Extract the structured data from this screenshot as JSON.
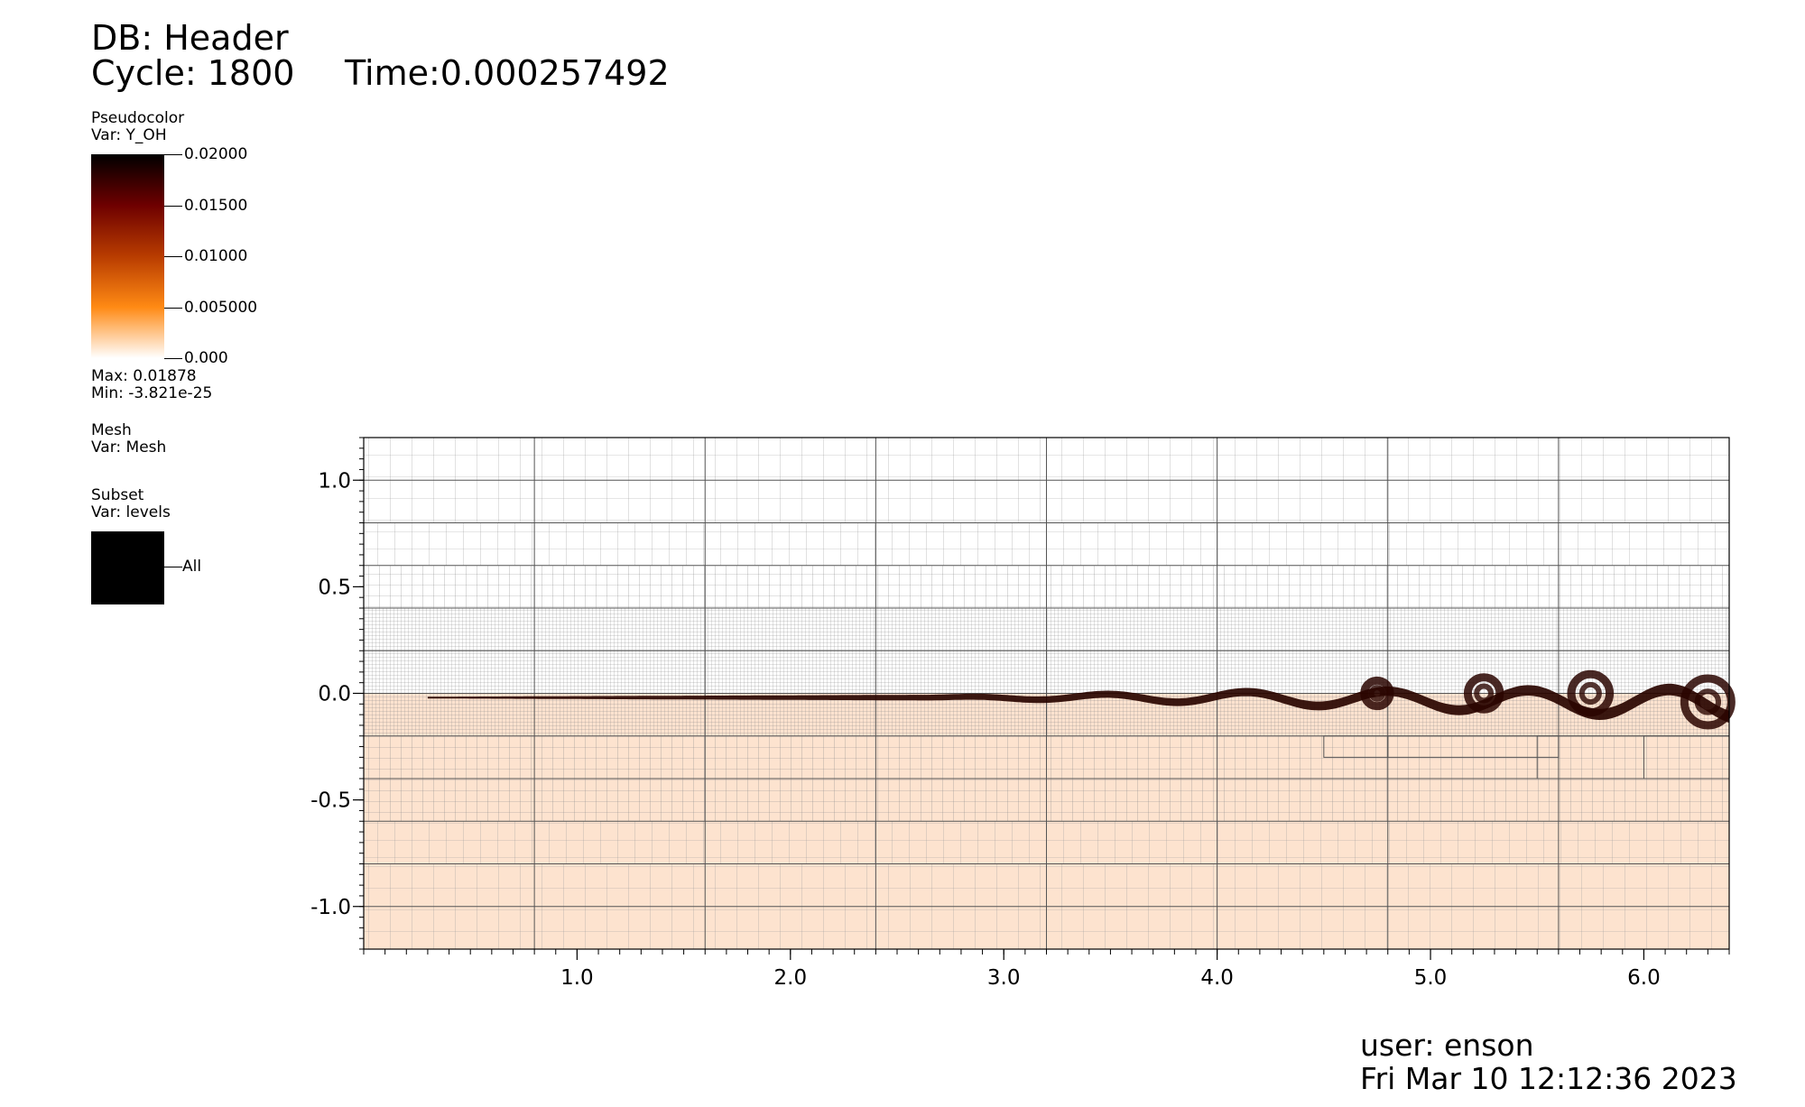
{
  "header": {
    "db": "DB: Header",
    "cycle": "Cycle: 1800",
    "time": "Time:0.000257492"
  },
  "legend_pseudocolor": {
    "title": "Pseudocolor",
    "var": "Var: Y_OH",
    "ticks": [
      "0.02000",
      "0.01500",
      "0.01000",
      "0.005000",
      "0.000"
    ],
    "max": "Max:  0.01878",
    "min": "Min: -3.821e-25",
    "colors": [
      "#000000",
      "#6e0000",
      "#b83c00",
      "#ff8a14",
      "#ffffff"
    ]
  },
  "legend_mesh": {
    "title": "Mesh",
    "var": "Var: Mesh"
  },
  "legend_subset": {
    "title": "Subset",
    "var": "Var: levels",
    "item": "All",
    "color": "#000000"
  },
  "chart_data": {
    "type": "heatmap",
    "variable": "Y_OH",
    "xlim": [
      0.0,
      6.4
    ],
    "ylim": [
      -1.2,
      1.2
    ],
    "x_ticks": [
      "1.0",
      "2.0",
      "3.0",
      "4.0",
      "5.0",
      "6.0"
    ],
    "y_ticks": [
      "1.0",
      "0.5",
      "0.0",
      "-0.5",
      "-1.0"
    ],
    "background_fill": "#fde3cf",
    "flame_color": "#2a0500",
    "coarse_grid_x": [
      0.8,
      1.6,
      2.4,
      3.2,
      4.0,
      4.8,
      5.6
    ],
    "coarse_grid_y": [
      1.0,
      0.8,
      0.6,
      0.4,
      0.2,
      0.0,
      -0.2,
      -0.4,
      -0.6,
      -0.8,
      -1.0
    ],
    "fill_region_y": [
      -1.2,
      0.0
    ]
  },
  "footer": {
    "user": "user: enson",
    "date": "Fri Mar 10 12:12:36 2023"
  }
}
